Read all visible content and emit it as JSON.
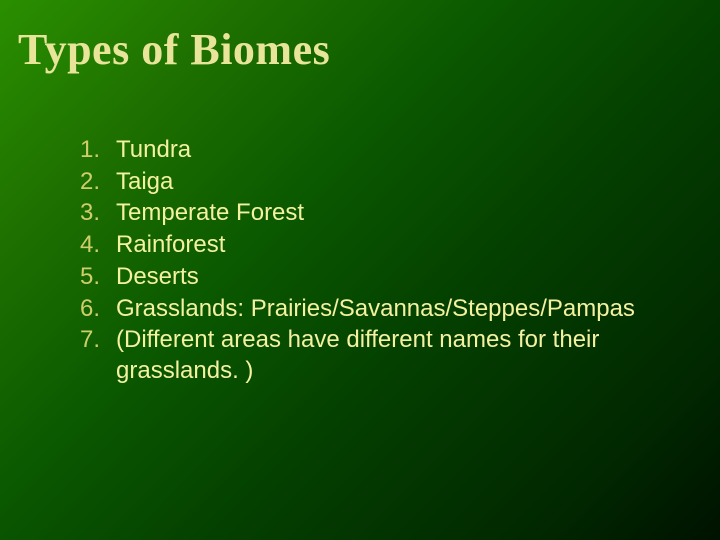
{
  "slide": {
    "title": "Types of Biomes",
    "background_gradient": {
      "direction": "135deg",
      "stops": [
        "#2a8f00",
        "#1e7000",
        "#0a5800",
        "#044000",
        "#012800",
        "#001200"
      ]
    },
    "title_color": "#e8e49a",
    "title_fontsize": 44,
    "number_color": "#d0ce6a",
    "item_color": "#f4f1a0",
    "item_fontsize": 24,
    "items": [
      {
        "num": "1.",
        "text": "Tundra"
      },
      {
        "num": "2.",
        "text": "Taiga"
      },
      {
        "num": "3.",
        "text": "Temperate Forest"
      },
      {
        "num": "4.",
        "text": "Rainforest"
      },
      {
        "num": "5.",
        "text": "Deserts"
      },
      {
        "num": "6.",
        "text": "Grasslands: Prairies/Savannas/Steppes/Pampas"
      },
      {
        "num": "7.",
        "text": "(Different areas have different names for their grasslands. )"
      }
    ]
  }
}
